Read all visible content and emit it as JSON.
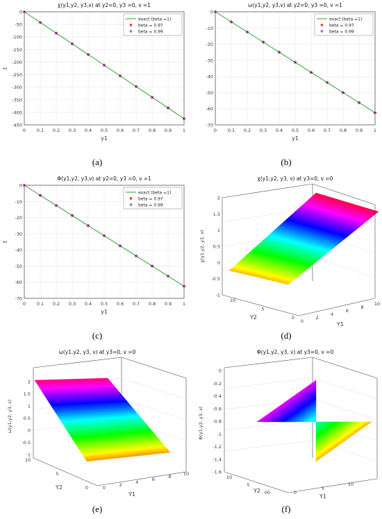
{
  "colors": {
    "line": "#2ca02c",
    "star": "#ff2020",
    "plus": "#3030c0",
    "axis": "#333333",
    "grid": "#e6e6e6"
  },
  "chart_data": [
    {
      "id": "a",
      "type": "line",
      "caption": "(a)",
      "title": "χ(y1,y2, y3,ν) at y2=0, y3 =0,  ν =1",
      "xlabel": "y1",
      "ylabel": "t",
      "xlim": [
        0,
        1
      ],
      "ylim": [
        -450,
        0
      ],
      "xticks": [
        0,
        0.1,
        0.2,
        0.3,
        0.4,
        0.5,
        0.6,
        0.7,
        0.8,
        0.9,
        1
      ],
      "yticks": [
        0,
        -50,
        -100,
        -150,
        -200,
        -250,
        -300,
        -350,
        -400,
        -450
      ],
      "legend_position": "top-right",
      "series": [
        {
          "name": "exact (beta =1)",
          "marker": "line",
          "x": [
            0,
            1
          ],
          "y": [
            0,
            -425
          ]
        },
        {
          "name": "beta = 0.97",
          "marker": "star",
          "x": [
            0,
            0.1,
            0.2,
            0.3,
            0.4,
            0.5,
            0.6,
            0.7,
            0.8,
            0.9,
            1
          ],
          "y": [
            0,
            -42.5,
            -85,
            -127.5,
            -170,
            -212.5,
            -255,
            -297.5,
            -340,
            -382.5,
            -425
          ]
        },
        {
          "name": "beta = 0.99",
          "marker": "plus",
          "x": [
            0,
            0.1,
            0.2,
            0.3,
            0.4,
            0.5,
            0.6,
            0.7,
            0.8,
            0.9,
            1
          ],
          "y": [
            0,
            -42.5,
            -85,
            -127.5,
            -170,
            -212.5,
            -255,
            -297.5,
            -340,
            -382.5,
            -425
          ]
        }
      ]
    },
    {
      "id": "b",
      "type": "line",
      "caption": "(b)",
      "title": "ω(y1,y2, y3,ν) at y2=0, y3 =0,  ν =1",
      "xlabel": "y1",
      "ylabel": "",
      "xlim": [
        0,
        1
      ],
      "ylim": [
        -70,
        0
      ],
      "xticks": [
        0,
        0.1,
        0.2,
        0.3,
        0.4,
        0.5,
        0.6,
        0.7,
        0.8,
        0.9,
        1
      ],
      "yticks": [
        0,
        -10,
        -20,
        -30,
        -40,
        -50,
        -60,
        -70
      ],
      "legend_position": "top-right",
      "series": [
        {
          "name": "exact (beta =1)",
          "marker": "line",
          "x": [
            0,
            1
          ],
          "y": [
            0,
            -62.5
          ]
        },
        {
          "name": "beta = 0.97",
          "marker": "star",
          "x": [
            0,
            0.1,
            0.2,
            0.3,
            0.4,
            0.5,
            0.6,
            0.7,
            0.8,
            0.9,
            1
          ],
          "y": [
            0,
            -6.25,
            -12.5,
            -18.75,
            -25,
            -31.25,
            -37.5,
            -43.75,
            -50,
            -56.25,
            -62.5
          ]
        },
        {
          "name": "beta = 0.99",
          "marker": "plus",
          "x": [
            0,
            0.1,
            0.2,
            0.3,
            0.4,
            0.5,
            0.6,
            0.7,
            0.8,
            0.9,
            1
          ],
          "y": [
            0,
            -6.25,
            -12.5,
            -18.75,
            -25,
            -31.25,
            -37.5,
            -43.75,
            -50,
            -56.25,
            -62.5
          ]
        }
      ]
    },
    {
      "id": "c",
      "type": "line",
      "caption": "(c)",
      "title": "Φ(y1,y2, y3,ν) at y2=0, y3 =0,  ν =1",
      "xlabel": "y1",
      "ylabel": "t",
      "xlim": [
        0,
        1
      ],
      "ylim": [
        -70,
        0
      ],
      "xticks": [
        0,
        0.1,
        0.2,
        0.3,
        0.4,
        0.5,
        0.6,
        0.7,
        0.8,
        0.9,
        1
      ],
      "yticks": [
        0,
        -10,
        -20,
        -30,
        -40,
        -50,
        -60,
        -70
      ],
      "legend_position": "top-right",
      "series": [
        {
          "name": "exact (beta =1)",
          "marker": "line",
          "x": [
            0,
            1
          ],
          "y": [
            0,
            -62.5
          ]
        },
        {
          "name": "beta = 0.97",
          "marker": "star",
          "x": [
            0,
            0.1,
            0.2,
            0.3,
            0.4,
            0.5,
            0.6,
            0.7,
            0.8,
            0.9,
            1
          ],
          "y": [
            0,
            -6.25,
            -12.5,
            -18.75,
            -25,
            -31.25,
            -37.5,
            -43.75,
            -50,
            -56.25,
            -62.5
          ]
        },
        {
          "name": "beta = 0.99",
          "marker": "plus",
          "x": [
            0,
            0.1,
            0.2,
            0.3,
            0.4,
            0.5,
            0.6,
            0.7,
            0.8,
            0.9,
            1
          ],
          "y": [
            0,
            -6.25,
            -12.5,
            -18.75,
            -25,
            -31.25,
            -37.5,
            -43.75,
            -50,
            -56.25,
            -62.5
          ]
        }
      ]
    },
    {
      "id": "d",
      "type": "surface",
      "caption": "(d)",
      "title": "χ(y1,y2, y3, ν) at y3=0, ν =0",
      "xlabel": "Y1",
      "ylabel": "Y2",
      "zlabel": "χ(y1,y2, y3, ν)",
      "xlim": [
        0,
        10
      ],
      "ylim": [
        0,
        10
      ],
      "zlim": [
        -1,
        2
      ],
      "xticks": [
        "0",
        "2",
        "4",
        "6",
        "8",
        "10"
      ],
      "yticks": [
        "0",
        "5",
        "10"
      ],
      "zticks": [
        "2",
        "1.5",
        "1",
        "0.5",
        "0",
        "-0.5",
        "-1"
      ],
      "colormap": "hsv"
    },
    {
      "id": "e",
      "type": "surface",
      "caption": "(e)",
      "title": "ω(y1,y2, y3, ν) at y3=0, ν =0",
      "xlabel": "Y1",
      "ylabel": "Y2",
      "zlabel": "ω(y1,y2, y3, ν)",
      "xlim": [
        0,
        10
      ],
      "ylim": [
        0,
        10
      ],
      "zlim": [
        -1,
        2
      ],
      "xticks": [
        "0",
        "2",
        "4",
        "6",
        "8",
        "10"
      ],
      "yticks": [
        "0",
        "5",
        "10"
      ],
      "zticks": [
        "2",
        "1.5",
        "1",
        "0.5",
        "0",
        "-0.5",
        "-1"
      ],
      "colormap": "hsv"
    },
    {
      "id": "f",
      "type": "surface",
      "caption": "(f)",
      "title": "Φ(y1,y2, y3, ν) at y3=0, ν =0",
      "xlabel": "Y1",
      "ylabel": "Y2",
      "zlabel": "Φ(y1,y2, y3, ν)",
      "xlim": [
        0,
        10
      ],
      "ylim": [
        0,
        10
      ],
      "zlim": [
        -1.6,
        0
      ],
      "xticks": [
        "0",
        "5",
        "10"
      ],
      "yticks": [
        "00",
        "5",
        "10"
      ],
      "zticks": [
        "0",
        "-0.2",
        "-0.4",
        "-0.6",
        "-0.8",
        "-1",
        "-1.2",
        "-1.4",
        "-1.6"
      ],
      "colormap": "hsv"
    }
  ]
}
